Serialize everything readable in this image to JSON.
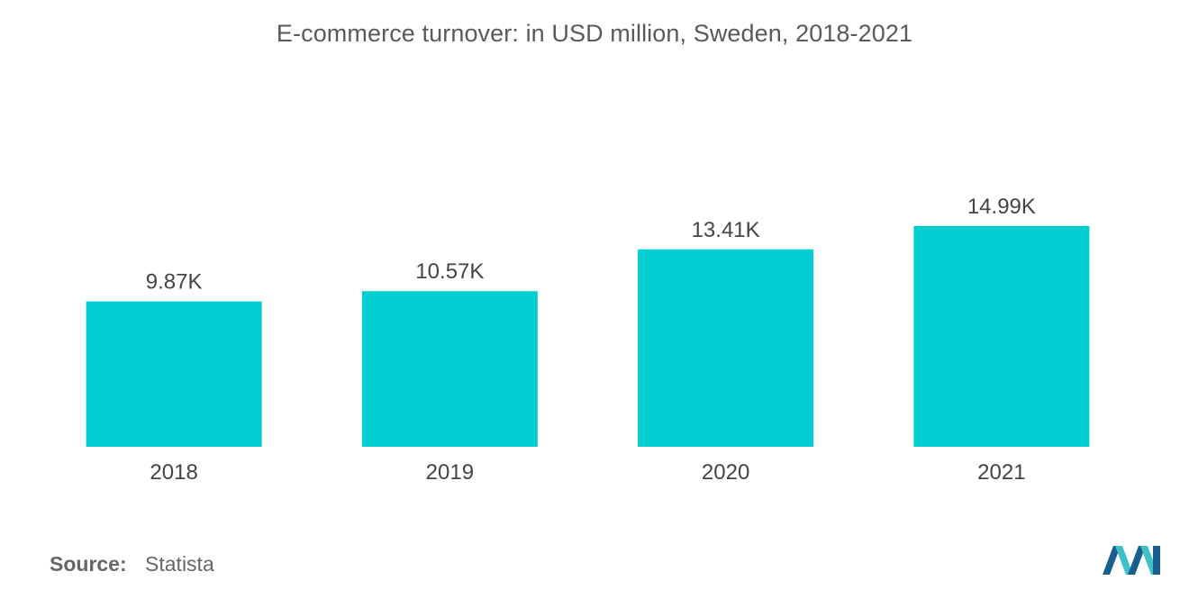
{
  "title": "E-commerce turnover: in USD million, Sweden, 2018-2021",
  "source": {
    "label": "Source:",
    "value": "Statista"
  },
  "colors": {
    "bar": "#00ced1",
    "text": "#444444",
    "logo_dark": "#1a5d8f",
    "logo_light": "#3fc1c9"
  },
  "logo_icon": "mordor-intelligence-logo-icon",
  "chart_data": {
    "type": "bar",
    "categories": [
      "2018",
      "2019",
      "2020",
      "2021"
    ],
    "values": [
      9870,
      10570,
      13410,
      14990
    ],
    "data_labels": [
      "9.87K",
      "10.57K",
      "13.41K",
      "14.99K"
    ],
    "title": "E-commerce turnover: in USD million, Sweden, 2018-2021",
    "xlabel": "",
    "ylabel": "",
    "ylim": [
      0,
      23000
    ],
    "grid": false,
    "legend": "none"
  }
}
